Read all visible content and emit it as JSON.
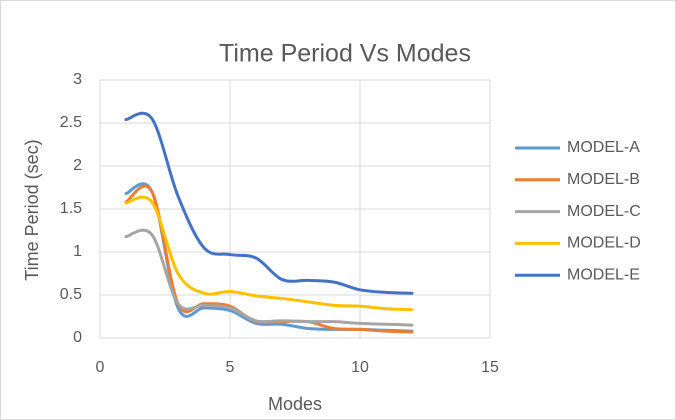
{
  "chart_data": {
    "type": "line",
    "title": "Time Period Vs Modes",
    "x_label": "Modes",
    "y_label": "Time Period (sec)",
    "x": [
      1,
      2,
      3,
      4,
      5,
      6,
      7,
      8,
      9,
      10,
      11,
      12
    ],
    "series": [
      {
        "name": "MODEL-A",
        "color": "#5b9bd5",
        "values": [
          1.68,
          1.7,
          0.35,
          0.35,
          0.32,
          0.17,
          0.16,
          0.11,
          0.1,
          0.1,
          0.09,
          0.08
        ]
      },
      {
        "name": "MODEL-B",
        "color": "#ed7d31",
        "values": [
          1.58,
          1.7,
          0.4,
          0.4,
          0.37,
          0.19,
          0.19,
          0.19,
          0.11,
          0.1,
          0.08,
          0.07
        ]
      },
      {
        "name": "MODEL-C",
        "color": "#a5a5a5",
        "values": [
          1.18,
          1.2,
          0.4,
          0.38,
          0.35,
          0.2,
          0.2,
          0.19,
          0.19,
          0.17,
          0.16,
          0.15
        ]
      },
      {
        "name": "MODEL-D",
        "color": "#ffc000",
        "values": [
          1.57,
          1.58,
          0.75,
          0.52,
          0.54,
          0.49,
          0.46,
          0.42,
          0.38,
          0.37,
          0.34,
          0.33
        ]
      },
      {
        "name": "MODEL-E",
        "color": "#4472c4",
        "values": [
          2.54,
          2.55,
          1.65,
          1.05,
          0.97,
          0.93,
          0.68,
          0.67,
          0.65,
          0.56,
          0.53,
          0.52
        ]
      }
    ],
    "xlim": [
      0,
      15
    ],
    "xticks": [
      0,
      5,
      10,
      15
    ],
    "ylim": [
      0,
      3
    ],
    "yticks": [
      0,
      0.5,
      1,
      1.5,
      2,
      2.5,
      3
    ],
    "grid": true,
    "legend": "right",
    "smooth": true
  }
}
